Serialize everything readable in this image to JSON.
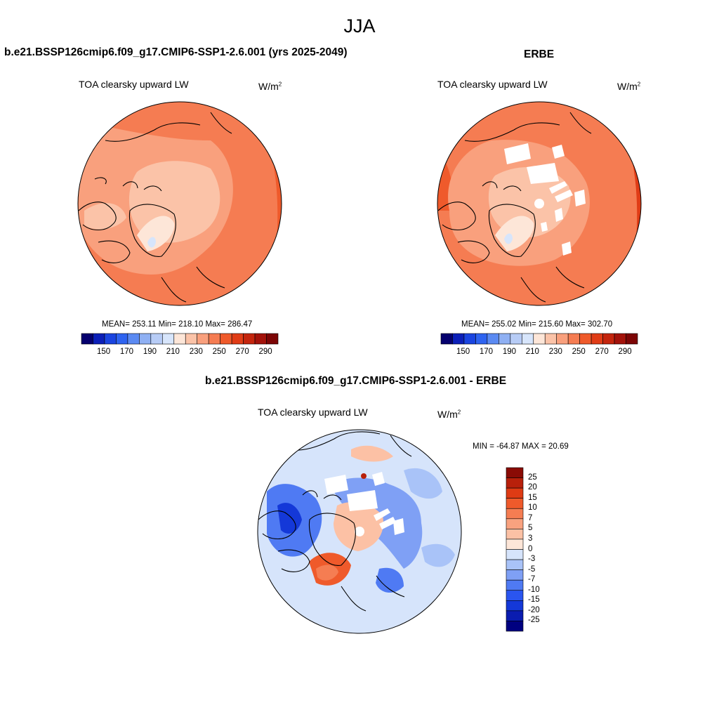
{
  "figure_title": "JJA",
  "colors": {
    "map_palette": [
      "#05006e",
      "#0b1fb8",
      "#1a44e0",
      "#2e63f0",
      "#5b8af2",
      "#8fb0f3",
      "#b7ccf6",
      "#d7e5fb",
      "#fde6d8",
      "#fbc3a8",
      "#f9a07d",
      "#f57c52",
      "#ef5a2b",
      "#e03c16",
      "#c4250d",
      "#a3120a",
      "#7c0505"
    ],
    "diff_palette": [
      "#000080",
      "#0a1cb0",
      "#1438d8",
      "#2a55f0",
      "#4f7af3",
      "#7fa0f5",
      "#a9c3f8",
      "#d6e4fb",
      "#fde6d8",
      "#fcc1a5",
      "#f9a27f",
      "#f57d52",
      "#ef5a2b",
      "#df3b14",
      "#b8200b",
      "#8a0b05"
    ]
  },
  "panels": [
    {
      "id": "model",
      "title": "b.e21.BSSP126cmip6.f09_g17.CMIP6-SSP1-2.6.001 (yrs 2025-2049)",
      "variable": "TOA clearsky upward LW",
      "units": "W/m",
      "units_sup": "2",
      "stats": "MEAN= 253.11  Min= 218.10  Max= 286.47",
      "colorbar_ticks": [
        "150",
        "170",
        "190",
        "210",
        "230",
        "250",
        "270",
        "290"
      ]
    },
    {
      "id": "obs",
      "title": "ERBE",
      "variable": "TOA clearsky upward LW",
      "units": "W/m",
      "units_sup": "2",
      "stats": "MEAN= 255.02  Min= 215.60  Max= 302.70",
      "colorbar_ticks": [
        "150",
        "170",
        "190",
        "210",
        "230",
        "250",
        "270",
        "290"
      ]
    },
    {
      "id": "diff",
      "title": "b.e21.BSSP126cmip6.f09_g17.CMIP6-SSP1-2.6.001 - ERBE",
      "variable": "TOA clearsky upward LW",
      "units": "W/m",
      "units_sup": "2",
      "stats": "MIN = -64.87 MAX =  20.69",
      "colorbar_labels": [
        "25",
        "20",
        "15",
        "10",
        "7",
        "5",
        "3",
        "0",
        "-3",
        "-5",
        "-7",
        "-10",
        "-15",
        "-20",
        "-25"
      ]
    }
  ]
}
